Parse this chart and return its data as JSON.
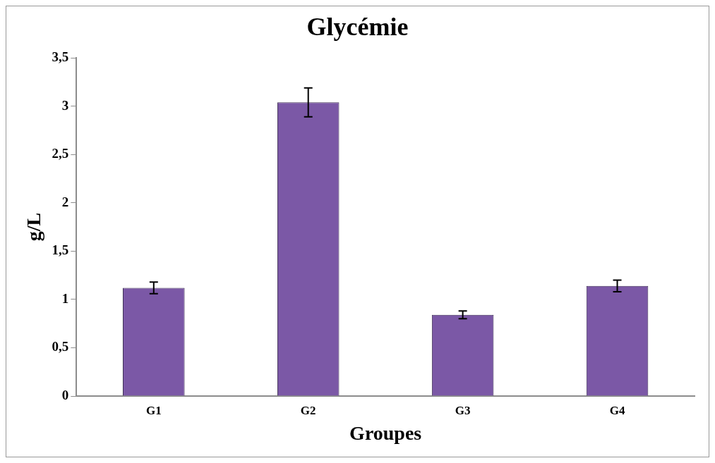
{
  "chart_data": {
    "type": "bar",
    "title": "Glycémie",
    "xlabel": "Groupes",
    "ylabel": "g/L",
    "categories": [
      "G1",
      "G2",
      "G3",
      "G4"
    ],
    "values": [
      1.12,
      3.04,
      0.84,
      1.14
    ],
    "errors": [
      0.06,
      0.15,
      0.04,
      0.06
    ],
    "color": "#7b58a6",
    "ylim": [
      0,
      3.5
    ],
    "yticks": [
      {
        "value": 0,
        "label": "0"
      },
      {
        "value": 0.5,
        "label": "0,5"
      },
      {
        "value": 1,
        "label": "1"
      },
      {
        "value": 1.5,
        "label": "1,5"
      },
      {
        "value": 2,
        "label": "2"
      },
      {
        "value": 2.5,
        "label": "2,5"
      },
      {
        "value": 3,
        "label": "3"
      },
      {
        "value": 3.5,
        "label": "3,5"
      }
    ],
    "grid": false,
    "legend": false
  }
}
